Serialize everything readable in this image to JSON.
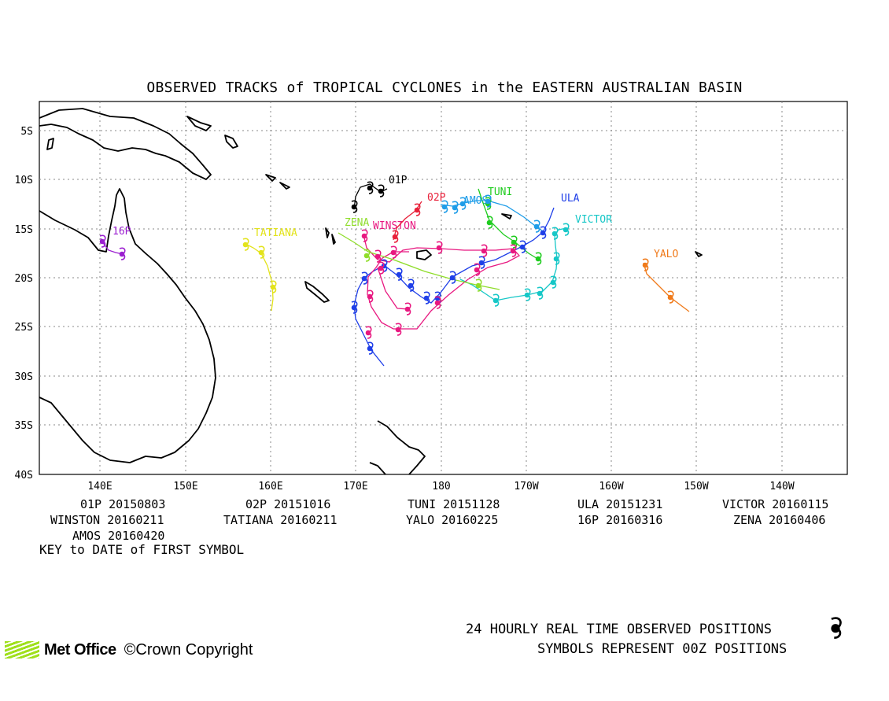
{
  "title": "OBSERVED TRACKS of TROPICAL CYCLONES in the EASTERN AUSTRALIAN BASIN",
  "lat_labels": [
    "5S",
    "10S",
    "15S",
    "20S",
    "25S",
    "30S",
    "35S",
    "40S"
  ],
  "lon_labels": [
    "140E",
    "150E",
    "160E",
    "170E",
    "180",
    "170W",
    "160W",
    "150W",
    "140W"
  ],
  "storms": [
    {
      "name": "01P",
      "date": "20150803",
      "color": "#000000"
    },
    {
      "name": "02P",
      "date": "20151016",
      "color": "#e8213a"
    },
    {
      "name": "TUNI",
      "date": "20151128",
      "color": "#1fcc1f"
    },
    {
      "name": "ULA",
      "date": "20151231",
      "color": "#1f3fe8"
    },
    {
      "name": "VICTOR",
      "date": "20160115",
      "color": "#16c7c7"
    },
    {
      "name": "WINSTON",
      "date": "20160211",
      "color": "#e81880"
    },
    {
      "name": "TATIANA",
      "date": "20160211",
      "color": "#e3e31a"
    },
    {
      "name": "YALO",
      "date": "20160225",
      "color": "#f07a1a"
    },
    {
      "name": "16P",
      "date": "20160316",
      "color": "#9b1fd0"
    },
    {
      "name": "ZENA",
      "date": "20160406",
      "color": "#8fdd2a"
    },
    {
      "name": "AMOS",
      "date": "20160420",
      "color": "#1f9de8"
    }
  ],
  "key_label": "KEY to DATE of FIRST SYMBOL",
  "footer": {
    "line1": "24 HOURLY REAL TIME OBSERVED POSITIONS",
    "line2": "SYMBOLS REPRESENT 00Z POSITIONS",
    "org": "Met Office",
    "copyright": "©Crown Copyright"
  }
}
